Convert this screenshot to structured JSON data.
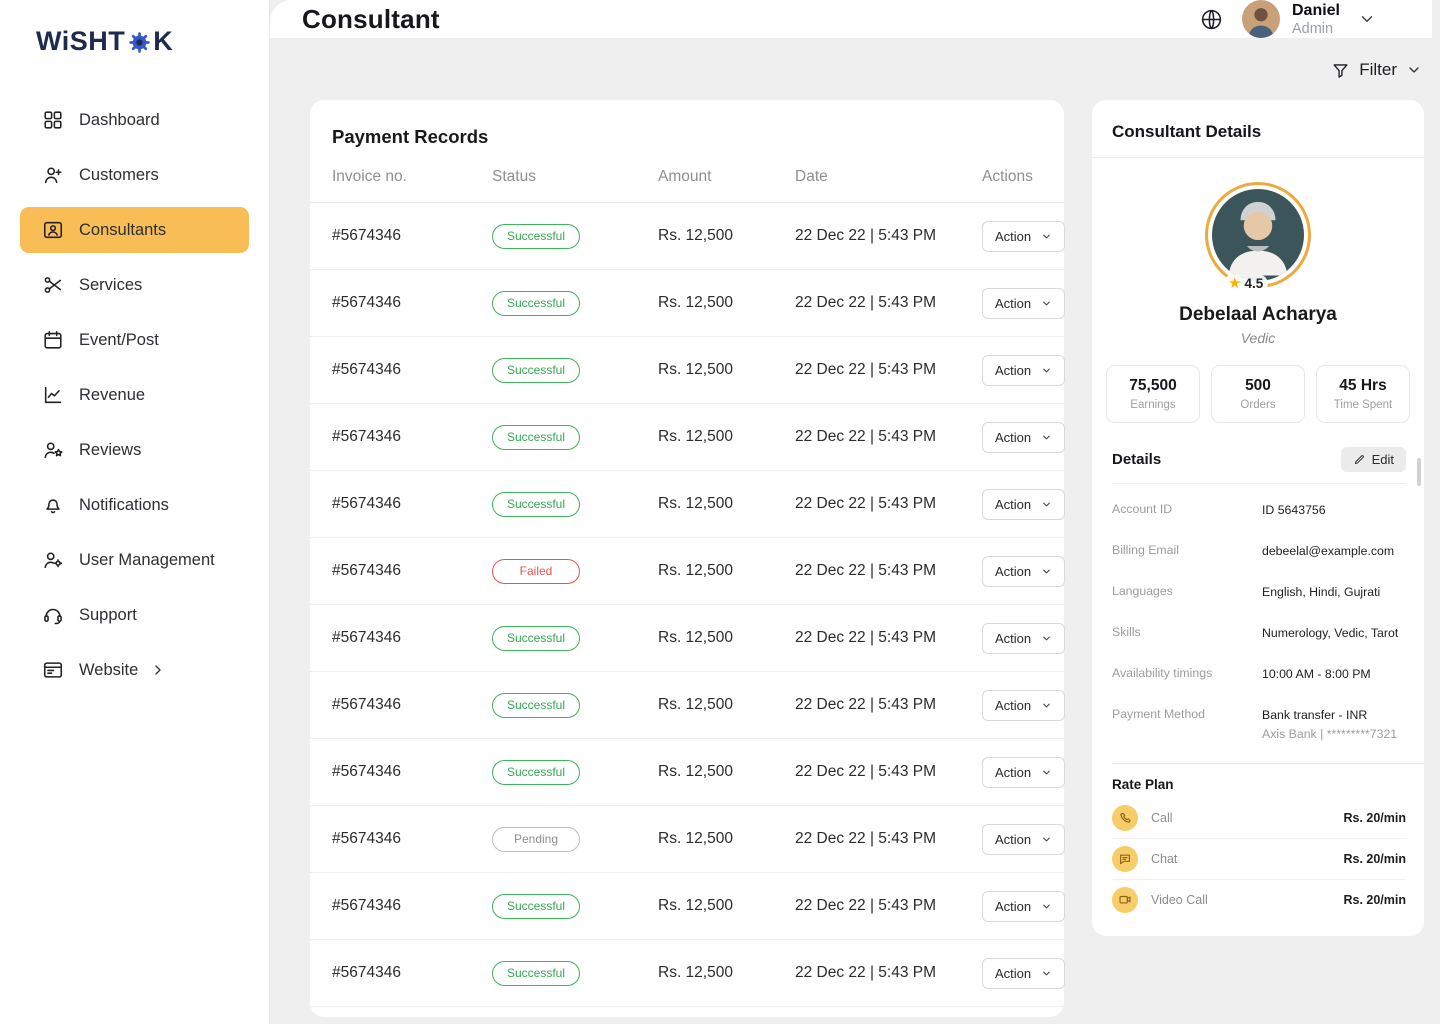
{
  "brand": {
    "name": "WiSHTOK",
    "logo_prefix": "WiSHT",
    "logo_suffix": "K"
  },
  "header": {
    "title": "Consultant",
    "user": {
      "name": "Daniel",
      "role": "Admin"
    }
  },
  "sidebar": {
    "items": [
      {
        "label": "Dashboard",
        "icon": "dashboard"
      },
      {
        "label": "Customers",
        "icon": "customers"
      },
      {
        "label": "Consultants",
        "icon": "consultants",
        "state": "active"
      },
      {
        "label": "Services",
        "icon": "services"
      },
      {
        "label": "Event/Post",
        "icon": "event-post"
      },
      {
        "label": "Revenue",
        "icon": "revenue"
      },
      {
        "label": "Reviews",
        "icon": "reviews"
      },
      {
        "label": "Notifications",
        "icon": "notifications"
      },
      {
        "label": "User Management",
        "icon": "user-management"
      },
      {
        "label": "Support",
        "icon": "support"
      },
      {
        "label": "Website",
        "icon": "website",
        "trailing": "chevron-right"
      }
    ]
  },
  "filter": {
    "label": "Filter"
  },
  "payments": {
    "title": "Payment Records",
    "columns": [
      "Invoice no.",
      "Status",
      "Amount",
      "Date",
      "Actions"
    ],
    "action_label": "Action",
    "rows": [
      {
        "invoice": "#5674346",
        "status": "Successful",
        "amount": "Rs. 12,500",
        "date": "22 Dec 22 | 5:43 PM"
      },
      {
        "invoice": "#5674346",
        "status": "Successful",
        "amount": "Rs. 12,500",
        "date": "22 Dec 22 | 5:43 PM"
      },
      {
        "invoice": "#5674346",
        "status": "Successful",
        "amount": "Rs. 12,500",
        "date": "22 Dec 22 | 5:43 PM"
      },
      {
        "invoice": "#5674346",
        "status": "Successful",
        "amount": "Rs. 12,500",
        "date": "22 Dec 22 | 5:43 PM"
      },
      {
        "invoice": "#5674346",
        "status": "Successful",
        "amount": "Rs. 12,500",
        "date": "22 Dec 22 | 5:43 PM"
      },
      {
        "invoice": "#5674346",
        "status": "Failed",
        "amount": "Rs. 12,500",
        "date": "22 Dec 22 | 5:43 PM"
      },
      {
        "invoice": "#5674346",
        "status": "Successful",
        "amount": "Rs. 12,500",
        "date": "22 Dec 22 | 5:43 PM"
      },
      {
        "invoice": "#5674346",
        "status": "Successful",
        "amount": "Rs. 12,500",
        "date": "22 Dec 22 | 5:43 PM"
      },
      {
        "invoice": "#5674346",
        "status": "Successful",
        "amount": "Rs. 12,500",
        "date": "22 Dec 22 | 5:43 PM"
      },
      {
        "invoice": "#5674346",
        "status": "Pending",
        "amount": "Rs. 12,500",
        "date": "22 Dec 22 | 5:43 PM"
      },
      {
        "invoice": "#5674346",
        "status": "Successful",
        "amount": "Rs. 12,500",
        "date": "22 Dec 22 | 5:43 PM"
      },
      {
        "invoice": "#5674346",
        "status": "Successful",
        "amount": "Rs. 12,500",
        "date": "22 Dec 22 | 5:43 PM"
      }
    ]
  },
  "consultant": {
    "panel_title": "Consultant Details",
    "rating": "4.5",
    "name": "Debelaal Acharya",
    "category": "Vedic",
    "stats": [
      {
        "value": "75,500",
        "label": "Earnings"
      },
      {
        "value": "500",
        "label": "Orders"
      },
      {
        "value": "45 Hrs",
        "label": "Time Spent"
      }
    ],
    "details": {
      "title": "Details",
      "edit_label": "Edit",
      "fields": [
        {
          "label": "Account ID",
          "value": "ID 5643756"
        },
        {
          "label": "Billing Email",
          "value": "debeelal@example.com"
        },
        {
          "label": "Languages",
          "value": "English, Hindi, Gujrati"
        },
        {
          "label": "Skills",
          "value": "Numerology, Vedic, Tarot"
        },
        {
          "label": "Availability timings",
          "value": "10:00 AM - 8:00 PM"
        },
        {
          "label": "Payment Method",
          "value": "Bank transfer -  INR",
          "value2": "Axis Bank |  *********7321"
        }
      ]
    },
    "rate_plan": {
      "title": "Rate Plan",
      "items": [
        {
          "label": "Call",
          "value": "Rs. 20/min",
          "icon": "call"
        },
        {
          "label": "Chat",
          "value": "Rs. 20/min",
          "icon": "chat"
        },
        {
          "label": "Video Call",
          "value": "Rs. 20/min",
          "icon": "video-call"
        }
      ]
    }
  },
  "colors": {
    "accent": "#F8BD55",
    "success": "#33A852",
    "failed": "#E2574C",
    "pending": "#8E8E8E",
    "gold_ring": "#EFA93D",
    "rate_icon_bg": "#F6CD69",
    "logo_navy": "#1D2B4F",
    "logo_gear_blue": "#3457C9"
  }
}
